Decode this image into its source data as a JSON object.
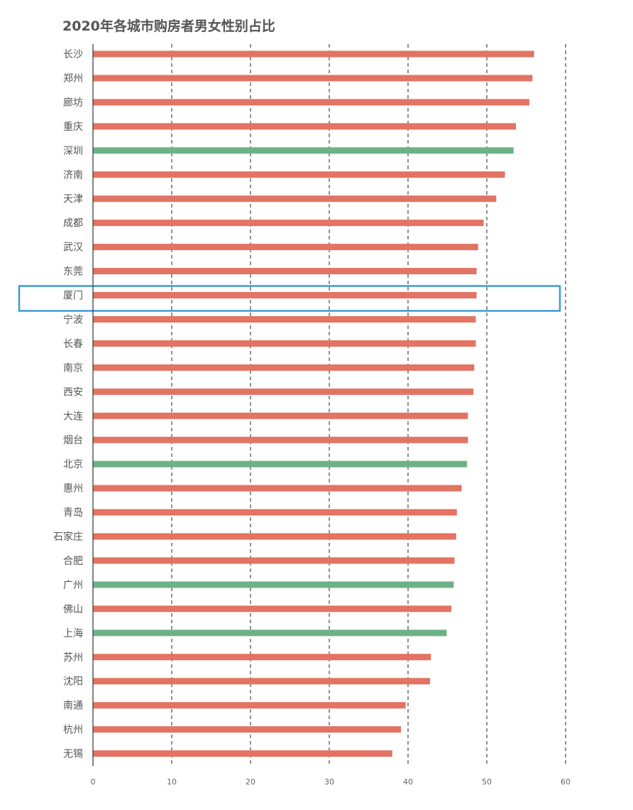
{
  "chart_data": {
    "type": "bar",
    "orientation": "horizontal",
    "title": "2020年各城市购房者男女性别占比",
    "xlabel": "",
    "ylabel": "",
    "xlim": [
      0,
      60
    ],
    "xticks": [
      0,
      10,
      20,
      30,
      40,
      50,
      60
    ],
    "grid": "vertical-dashed",
    "categories": [
      "长沙",
      "郑州",
      "廊坊",
      "重庆",
      "深圳",
      "济南",
      "天津",
      "成都",
      "武汉",
      "东莞",
      "厦门",
      "宁波",
      "长春",
      "南京",
      "西安",
      "大连",
      "烟台",
      "北京",
      "惠州",
      "青岛",
      "石家庄",
      "合肥",
      "广州",
      "佛山",
      "上海",
      "苏州",
      "沈阳",
      "南通",
      "杭州",
      "无锡"
    ],
    "values": [
      56.0,
      55.8,
      55.4,
      53.7,
      53.4,
      52.3,
      51.2,
      49.6,
      48.9,
      48.7,
      48.7,
      48.6,
      48.6,
      48.4,
      48.3,
      47.6,
      47.6,
      47.5,
      46.8,
      46.2,
      46.1,
      45.9,
      45.8,
      45.5,
      44.9,
      42.9,
      42.8,
      39.7,
      39.1,
      38.0
    ],
    "colors": {
      "default": "#e37362",
      "highlight_bars": "#6db287",
      "highlight_box": "#3b9bd6",
      "grid": "#222222",
      "axis": "#333333"
    },
    "green_categories": [
      "深圳",
      "北京",
      "广州",
      "上海"
    ],
    "boxed_category": "厦门"
  }
}
